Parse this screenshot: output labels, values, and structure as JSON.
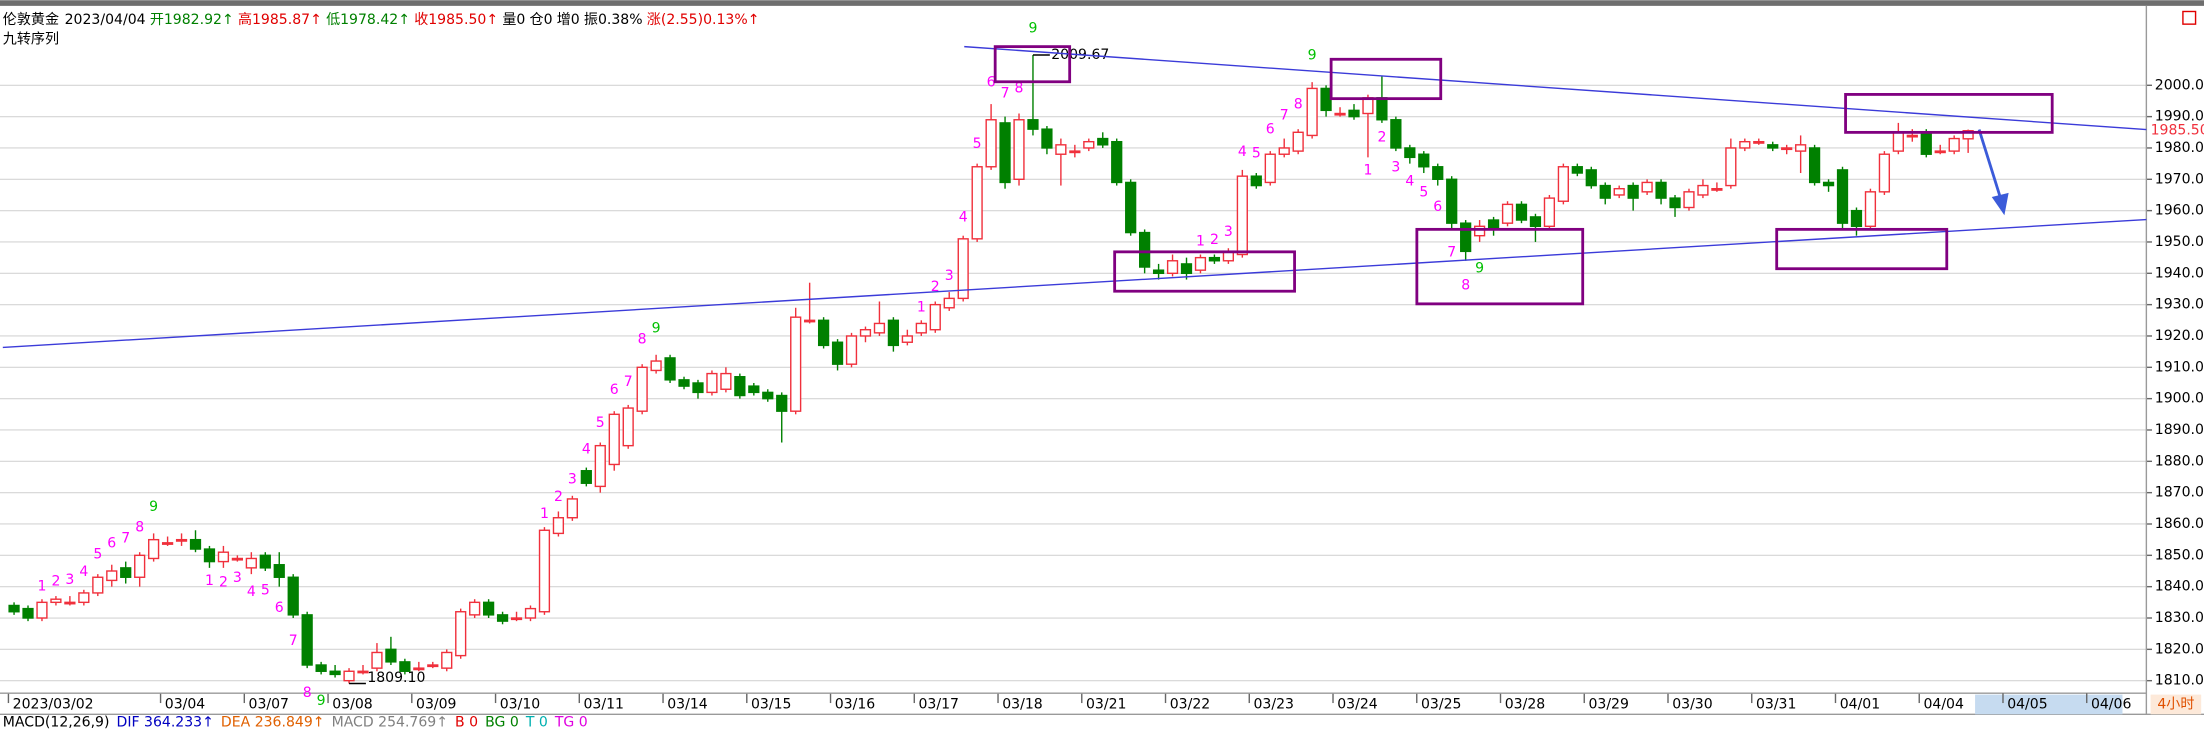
{
  "chart_data": {
    "type": "candlestick",
    "title": "伦敦黄金",
    "date": "2023/04/04",
    "quote": [
      {
        "text": "开1982.92↑",
        "color": "#008000"
      },
      {
        "text": "高1985.87↑",
        "color": "#e00000"
      },
      {
        "text": "低1978.42↑",
        "color": "#008000"
      },
      {
        "text": "收1985.50↑",
        "color": "#e00000"
      },
      {
        "text": "量0",
        "color": "#000000"
      },
      {
        "text": "仓0",
        "color": "#000000"
      },
      {
        "text": "增0",
        "color": "#000000"
      },
      {
        "text": "振0.38%",
        "color": "#000000"
      },
      {
        "text": "涨(2.55)0.13%↑",
        "color": "#e00000"
      }
    ],
    "subtitle": "九转序列",
    "period": "4小时",
    "indicator_legend": [
      {
        "text": "MACD(12,26,9)",
        "color": "#000000"
      },
      {
        "text": "DIF 364.233↑",
        "color": "#0000c0"
      },
      {
        "text": "DEA 236.849↑",
        "color": "#e06000"
      },
      {
        "text": "MACD 254.769↑",
        "color": "#808080"
      },
      {
        "text": "B 0",
        "color": "#e00000"
      },
      {
        "text": "BG 0",
        "color": "#008000"
      },
      {
        "text": "T 0",
        "color": "#00b0b0"
      },
      {
        "text": "TG 0",
        "color": "#e000e0"
      }
    ],
    "categories": [
      "2023/03/02",
      null,
      null,
      null,
      null,
      null,
      null,
      null,
      null,
      null,
      null,
      "03/04",
      null,
      null,
      null,
      null,
      null,
      "03/07",
      null,
      null,
      null,
      null,
      null,
      "03/08",
      null,
      null,
      null,
      null,
      null,
      "03/09",
      null,
      null,
      null,
      null,
      null,
      "03/10",
      null,
      null,
      null,
      null,
      null,
      "03/11",
      null,
      null,
      null,
      null,
      null,
      "03/14",
      null,
      null,
      null,
      null,
      null,
      "03/15",
      null,
      null,
      null,
      null,
      null,
      "03/16",
      null,
      null,
      null,
      null,
      null,
      "03/17",
      null,
      null,
      null,
      null,
      null,
      "03/18",
      null,
      null,
      null,
      null,
      null,
      "03/21",
      null,
      null,
      null,
      null,
      null,
      "03/22",
      null,
      null,
      null,
      null,
      null,
      "03/23",
      null,
      null,
      null,
      null,
      null,
      "03/24",
      null,
      null,
      null,
      null,
      null,
      "03/25",
      null,
      null,
      null,
      null,
      null,
      "03/28",
      null,
      null,
      null,
      null,
      null,
      "03/29",
      null,
      null,
      null,
      null,
      null,
      "03/30",
      null,
      null,
      null,
      null,
      null,
      "03/31",
      null,
      null,
      null,
      null,
      null,
      "04/01",
      null,
      null,
      null,
      null,
      null,
      "04/04",
      null,
      null,
      null
    ],
    "future_categories": [
      "04/05",
      "04/06"
    ],
    "open": [
      1834,
      1833,
      1830,
      1835,
      1835,
      1835,
      1838,
      1842,
      1846,
      1843,
      1849,
      1854,
      1855,
      1855,
      1852,
      1848,
      1849,
      1846,
      1850,
      1847,
      1843,
      1831,
      1815,
      1813,
      1810,
      1813,
      1814,
      1820,
      1816,
      1814,
      1815,
      1814,
      1818,
      1831,
      1835,
      1831,
      1830,
      1830,
      1832,
      1857,
      1862,
      1877,
      1872,
      1879,
      1885,
      1896,
      1909,
      1913,
      1906,
      1905,
      1902,
      1903,
      1907,
      1904,
      1902,
      1901,
      1896,
      1925,
      1925,
      1918,
      1911,
      1920,
      1921,
      1925,
      1918,
      1921,
      1922,
      1929,
      1932,
      1951,
      1974,
      1988,
      1970,
      1989,
      1986,
      1978,
      1979,
      1980,
      1983,
      1982,
      1969,
      1953,
      1941,
      1940,
      1943,
      1941,
      1945,
      1944,
      1946,
      1971,
      1969,
      1978,
      1979,
      1984,
      1999,
      1991,
      1992,
      1991,
      1996,
      1989,
      1980,
      1978,
      1974,
      1970,
      1956,
      1952,
      1957,
      1956,
      1962,
      1958,
      1955,
      1963,
      1974,
      1973,
      1968,
      1965,
      1968,
      1966,
      1969,
      1964,
      1961,
      1965,
      1967,
      1968,
      1980,
      1982,
      1981,
      1980,
      1979,
      1980,
      1969,
      1973,
      1960,
      1955,
      1966,
      1979,
      1984,
      1985,
      1979,
      1979,
      1982.92
    ],
    "high": [
      1835,
      1834,
      1836,
      1837,
      1837,
      1839,
      1844,
      1847,
      1848,
      1851,
      1857,
      1856,
      1857,
      1858,
      1853,
      1853,
      1850,
      1851,
      1851,
      1851,
      1844,
      1832,
      1816,
      1815,
      1814,
      1815,
      1822,
      1824,
      1817,
      1816,
      1816,
      1820,
      1833,
      1836,
      1836,
      1832,
      1832,
      1834,
      1859,
      1864,
      1869,
      1878,
      1886,
      1896,
      1898,
      1911,
      1914,
      1914,
      1907,
      1906,
      1909,
      1910,
      1908,
      1905,
      1903,
      1902,
      1929,
      1937,
      1926,
      1919,
      1921,
      1923,
      1931,
      1926,
      1922,
      1925,
      1931,
      1934,
      1952,
      1975,
      1994,
      1990,
      1991,
      2009.67,
      1987,
      1983,
      1981,
      1983,
      1985,
      1983,
      1970,
      1954,
      1943,
      1946,
      1945,
      1946,
      1946,
      1948,
      1973,
      1972,
      1979,
      1983,
      1986,
      2001,
      2000,
      1993,
      1994,
      1997,
      2003,
      1990,
      1981,
      1979,
      1975,
      1971,
      1957,
      1957,
      1958,
      1963,
      1963,
      1959,
      1965,
      1975,
      1975,
      1974,
      1969,
      1968,
      1969,
      1970,
      1970,
      1965,
      1967,
      1970,
      1969,
      1983,
      1983,
      1983,
      1982,
      1981,
      1984,
      1981,
      1970,
      1974,
      1961,
      1967,
      1979,
      1988,
      1986,
      1986,
      1981,
      1984,
      1985.87
    ],
    "low": [
      1831,
      1829,
      1829,
      1834,
      1834,
      1834,
      1837,
      1840,
      1841,
      1840,
      1848,
      1853,
      1853,
      1851,
      1846,
      1846,
      1848,
      1844,
      1845,
      1840,
      1830,
      1814,
      1812,
      1811,
      1809.1,
      1812,
      1813,
      1815,
      1812,
      1813,
      1814,
      1813,
      1817,
      1830,
      1830,
      1828,
      1829,
      1829,
      1831,
      1856,
      1861,
      1872,
      1870,
      1877,
      1884,
      1895,
      1908,
      1905,
      1903,
      1900,
      1901,
      1902,
      1900,
      1901,
      1899,
      1886,
      1895,
      1924,
      1916,
      1909,
      1910,
      1918,
      1920,
      1915,
      1917,
      1920,
      1921,
      1928,
      1931,
      1950,
      1973,
      1967,
      1968,
      1984,
      1978,
      1968,
      1977,
      1979,
      1980,
      1968,
      1952,
      1940,
      1938,
      1939,
      1938,
      1940,
      1943,
      1943,
      1945,
      1967,
      1968,
      1977,
      1978,
      1983,
      1990,
      1990,
      1989,
      1977,
      1988,
      1979,
      1975,
      1972,
      1968,
      1954,
      1944,
      1950,
      1952,
      1955,
      1956,
      1950,
      1954,
      1962,
      1971,
      1967,
      1962,
      1964,
      1960,
      1965,
      1962,
      1958,
      1960,
      1964,
      1966,
      1967,
      1979,
      1981,
      1979,
      1978,
      1972,
      1968,
      1966,
      1954,
      1952,
      1954,
      1965,
      1978,
      1982,
      1977,
      1978,
      1978,
      1978.42
    ],
    "close": [
      1832,
      1830,
      1835,
      1836,
      1835,
      1838,
      1843,
      1845,
      1843,
      1850,
      1855,
      1854,
      1855,
      1852,
      1848,
      1851,
      1849,
      1849,
      1846,
      1843,
      1831,
      1815,
      1813,
      1812,
      1813,
      1813,
      1819,
      1816,
      1813,
      1814,
      1815,
      1819,
      1832,
      1835,
      1831,
      1829,
      1830,
      1833,
      1858,
      1862,
      1868,
      1873,
      1885,
      1895,
      1897,
      1910,
      1912,
      1906,
      1904,
      1902,
      1908,
      1908,
      1901,
      1902,
      1900,
      1896,
      1926,
      1925,
      1917,
      1911,
      1920,
      1922,
      1924,
      1917,
      1920,
      1924,
      1930,
      1932,
      1951,
      1974,
      1989,
      1969,
      1989,
      1986,
      1980,
      1981,
      1979,
      1982,
      1981,
      1969,
      1953,
      1942,
      1940,
      1944,
      1940,
      1945,
      1944,
      1947,
      1971,
      1968,
      1978,
      1980,
      1985,
      1999,
      1992,
      1991,
      1990,
      1996,
      1989,
      1980,
      1977,
      1974,
      1970,
      1956,
      1947,
      1955,
      1954,
      1962,
      1957,
      1955,
      1964,
      1974,
      1972,
      1968,
      1964,
      1967,
      1964,
      1969,
      1964,
      1961,
      1966,
      1968,
      1967,
      1980,
      1982,
      1982,
      1980,
      1980,
      1981,
      1969,
      1968,
      1956,
      1955,
      1966,
      1978,
      1985,
      1984,
      1978,
      1979,
      1983,
      1985.5
    ],
    "high_labels": [
      null,
      null,
      null,
      null,
      null,
      null,
      null,
      null,
      null,
      null,
      null,
      null,
      null,
      null,
      null,
      null,
      null,
      null,
      null,
      null,
      null,
      null,
      null,
      null,
      null,
      null,
      null,
      null,
      null,
      null,
      null,
      null,
      null,
      null,
      null,
      null,
      null,
      null,
      null,
      null,
      null,
      null,
      null,
      null,
      null,
      null,
      null,
      null,
      null,
      null,
      null,
      null,
      null,
      null,
      null,
      null,
      null,
      null,
      null,
      null,
      null,
      null,
      null,
      null,
      null,
      null,
      null,
      null,
      null,
      null,
      null,
      null,
      null,
      "2009.67",
      null,
      null,
      null,
      null,
      null,
      null,
      null,
      null,
      null,
      null,
      null,
      null,
      null,
      null,
      null,
      null,
      null,
      null,
      null,
      null,
      null,
      null,
      null,
      null,
      null,
      null,
      null,
      null,
      null,
      null,
      null,
      null,
      null,
      null,
      null,
      null,
      null,
      null,
      null,
      null,
      null,
      null,
      null,
      null,
      null,
      null,
      null,
      null,
      null,
      null,
      null,
      null,
      null,
      null,
      null,
      null,
      null,
      null,
      null,
      null,
      null,
      null,
      null,
      null,
      null,
      null,
      null
    ],
    "low_labels": [
      null,
      null,
      null,
      null,
      null,
      null,
      null,
      null,
      null,
      null,
      null,
      null,
      null,
      null,
      null,
      null,
      null,
      null,
      null,
      null,
      null,
      null,
      null,
      null,
      "1809.10",
      null,
      null,
      null,
      null,
      null,
      null,
      null,
      null,
      null,
      null,
      null,
      null,
      null,
      null,
      null,
      null,
      null,
      null,
      null,
      null,
      null,
      null,
      null,
      null,
      null,
      null,
      null,
      null,
      null,
      null,
      null,
      null,
      null,
      null,
      null,
      null,
      null,
      null,
      null,
      null,
      null,
      null,
      null,
      null,
      null,
      null,
      null,
      null,
      null,
      null,
      null,
      null,
      null,
      null,
      null,
      null,
      null,
      null,
      null,
      null,
      null,
      null,
      null,
      null,
      null,
      null,
      null,
      null,
      null,
      null,
      null,
      null,
      null,
      null,
      null,
      null,
      null,
      null,
      null,
      null,
      null,
      null,
      null,
      null,
      null,
      null,
      null,
      null,
      null,
      null,
      null,
      null,
      null,
      null,
      null,
      null,
      null,
      null,
      null,
      null,
      null,
      null,
      null,
      null,
      null,
      null,
      null,
      null,
      null,
      null,
      null,
      null,
      null,
      null,
      null,
      null
    ],
    "td_sell": [
      null,
      null,
      1,
      2,
      3,
      4,
      5,
      6,
      7,
      8,
      9,
      null,
      null,
      null,
      null,
      null,
      null,
      null,
      null,
      null,
      null,
      null,
      null,
      null,
      null,
      null,
      null,
      null,
      null,
      null,
      null,
      null,
      null,
      null,
      null,
      null,
      null,
      null,
      1,
      2,
      3,
      4,
      5,
      6,
      7,
      8,
      9,
      null,
      null,
      null,
      null,
      null,
      null,
      null,
      null,
      null,
      null,
      null,
      null,
      null,
      null,
      null,
      null,
      null,
      null,
      1,
      2,
      3,
      4,
      5,
      6,
      7,
      8,
      9,
      null,
      null,
      null,
      null,
      null,
      null,
      null,
      null,
      null,
      null,
      null,
      1,
      2,
      3,
      4,
      5,
      6,
      7,
      8,
      9,
      null,
      null,
      null,
      null,
      null,
      null,
      null,
      null,
      null,
      null,
      null,
      null,
      null,
      null,
      null,
      null,
      null,
      null,
      null,
      null,
      null,
      null,
      null,
      null,
      null,
      null,
      null,
      null,
      null,
      null,
      null,
      null,
      null,
      null,
      null,
      null,
      null,
      null,
      null,
      null,
      null,
      null,
      null,
      null,
      null,
      null,
      null
    ],
    "td_buy": [
      null,
      null,
      null,
      null,
      null,
      null,
      null,
      null,
      null,
      null,
      null,
      null,
      null,
      null,
      1,
      2,
      3,
      4,
      5,
      6,
      7,
      8,
      9,
      null,
      null,
      null,
      null,
      null,
      null,
      null,
      null,
      null,
      null,
      null,
      null,
      null,
      null,
      null,
      null,
      null,
      null,
      null,
      null,
      null,
      null,
      null,
      null,
      null,
      null,
      null,
      null,
      null,
      null,
      null,
      null,
      null,
      null,
      null,
      null,
      null,
      null,
      null,
      null,
      null,
      null,
      null,
      null,
      null,
      null,
      null,
      null,
      null,
      null,
      null,
      null,
      null,
      null,
      null,
      null,
      null,
      null,
      null,
      null,
      null,
      null,
      null,
      null,
      null,
      null,
      null,
      null,
      null,
      null,
      null,
      null,
      null,
      null,
      1,
      2,
      3,
      4,
      5,
      6,
      7,
      8,
      9,
      null,
      null,
      null,
      null,
      null,
      null,
      null,
      null,
      null,
      null,
      null,
      null,
      null,
      null,
      null,
      null,
      null,
      null,
      null,
      null,
      null,
      null,
      null,
      null,
      null,
      null,
      null,
      null,
      null,
      null,
      null,
      null,
      null,
      null,
      null
    ],
    "last_price_label": "1985.50",
    "up_color": "#f0303c",
    "down_color": "#008000",
    "td_color": "#ff00ff",
    "td_nine_color": "#00c000",
    "ylim": [
      1806,
      2024
    ],
    "yticks": [
      {
        "value": 1810,
        "label": "1810.00"
      },
      {
        "value": 1820,
        "label": "1820.00"
      },
      {
        "value": 1830,
        "label": "1830.00"
      },
      {
        "value": 1840,
        "label": "1840.00"
      },
      {
        "value": 1850,
        "label": "1850.00"
      },
      {
        "value": 1860,
        "label": "1860.00"
      },
      {
        "value": 1870,
        "label": "1870.00"
      },
      {
        "value": 1880,
        "label": "1880.00"
      },
      {
        "value": 1890,
        "label": "1890.00"
      },
      {
        "value": 1900,
        "label": "1900.00"
      },
      {
        "value": 1910,
        "label": "1910.00"
      },
      {
        "value": 1920,
        "label": "1920.00"
      },
      {
        "value": 1930,
        "label": "1930.00"
      },
      {
        "value": 1940,
        "label": "1940.00"
      },
      {
        "value": 1950,
        "label": "1950.00"
      },
      {
        "value": 1960,
        "label": "1960.00"
      },
      {
        "value": 1970,
        "label": "1970.00"
      },
      {
        "value": 1980,
        "label": "1980.00"
      },
      {
        "value": 1990,
        "label": "1990.00"
      },
      {
        "value": 2000,
        "label": "2000.00"
      }
    ],
    "grid": true
  }
}
